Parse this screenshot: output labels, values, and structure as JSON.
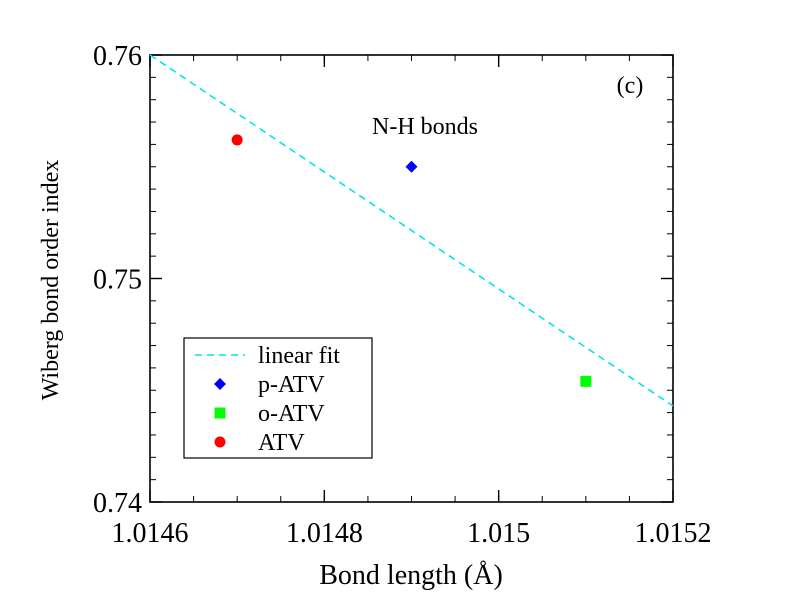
{
  "chart_data": {
    "type": "scatter",
    "title": "",
    "panel_label": "(c)",
    "annotation": "N-H bonds",
    "xlabel": "Bond length (Å)",
    "ylabel": "Wiberg bond order index",
    "xlim": [
      1.0146,
      1.0152
    ],
    "ylim": [
      0.74,
      0.76
    ],
    "x_ticks": [
      {
        "value": 1.0146,
        "label": "1.0146"
      },
      {
        "value": 1.0148,
        "label": "1.0148"
      },
      {
        "value": 1.015,
        "label": "1.015"
      },
      {
        "value": 1.0152,
        "label": "1.0152"
      }
    ],
    "y_ticks": [
      {
        "value": 0.74,
        "label": "0.74"
      },
      {
        "value": 0.75,
        "label": "0.75"
      },
      {
        "value": 0.76,
        "label": "0.76"
      }
    ],
    "x_minor_step": 5e-05,
    "y_minor_step": 0.001,
    "grid": false,
    "legend_position": "lower-left",
    "series": [
      {
        "name": "linear fit",
        "kind": "line",
        "style": "dashed",
        "color": "#00e5ee",
        "points": [
          {
            "x": 1.0146,
            "y": 0.76
          },
          {
            "x": 1.0152,
            "y": 0.7443
          }
        ]
      },
      {
        "name": "p-ATV",
        "kind": "marker",
        "marker": "diamond",
        "color": "#0000ff",
        "points": [
          {
            "x": 1.0149,
            "y": 0.755
          }
        ]
      },
      {
        "name": "o-ATV",
        "kind": "marker",
        "marker": "square",
        "color": "#00ff00",
        "points": [
          {
            "x": 1.0151,
            "y": 0.7454
          }
        ]
      },
      {
        "name": "ATV",
        "kind": "marker",
        "marker": "circle",
        "color": "#ff0000",
        "points": [
          {
            "x": 1.0147,
            "y": 0.7562
          }
        ]
      }
    ]
  }
}
